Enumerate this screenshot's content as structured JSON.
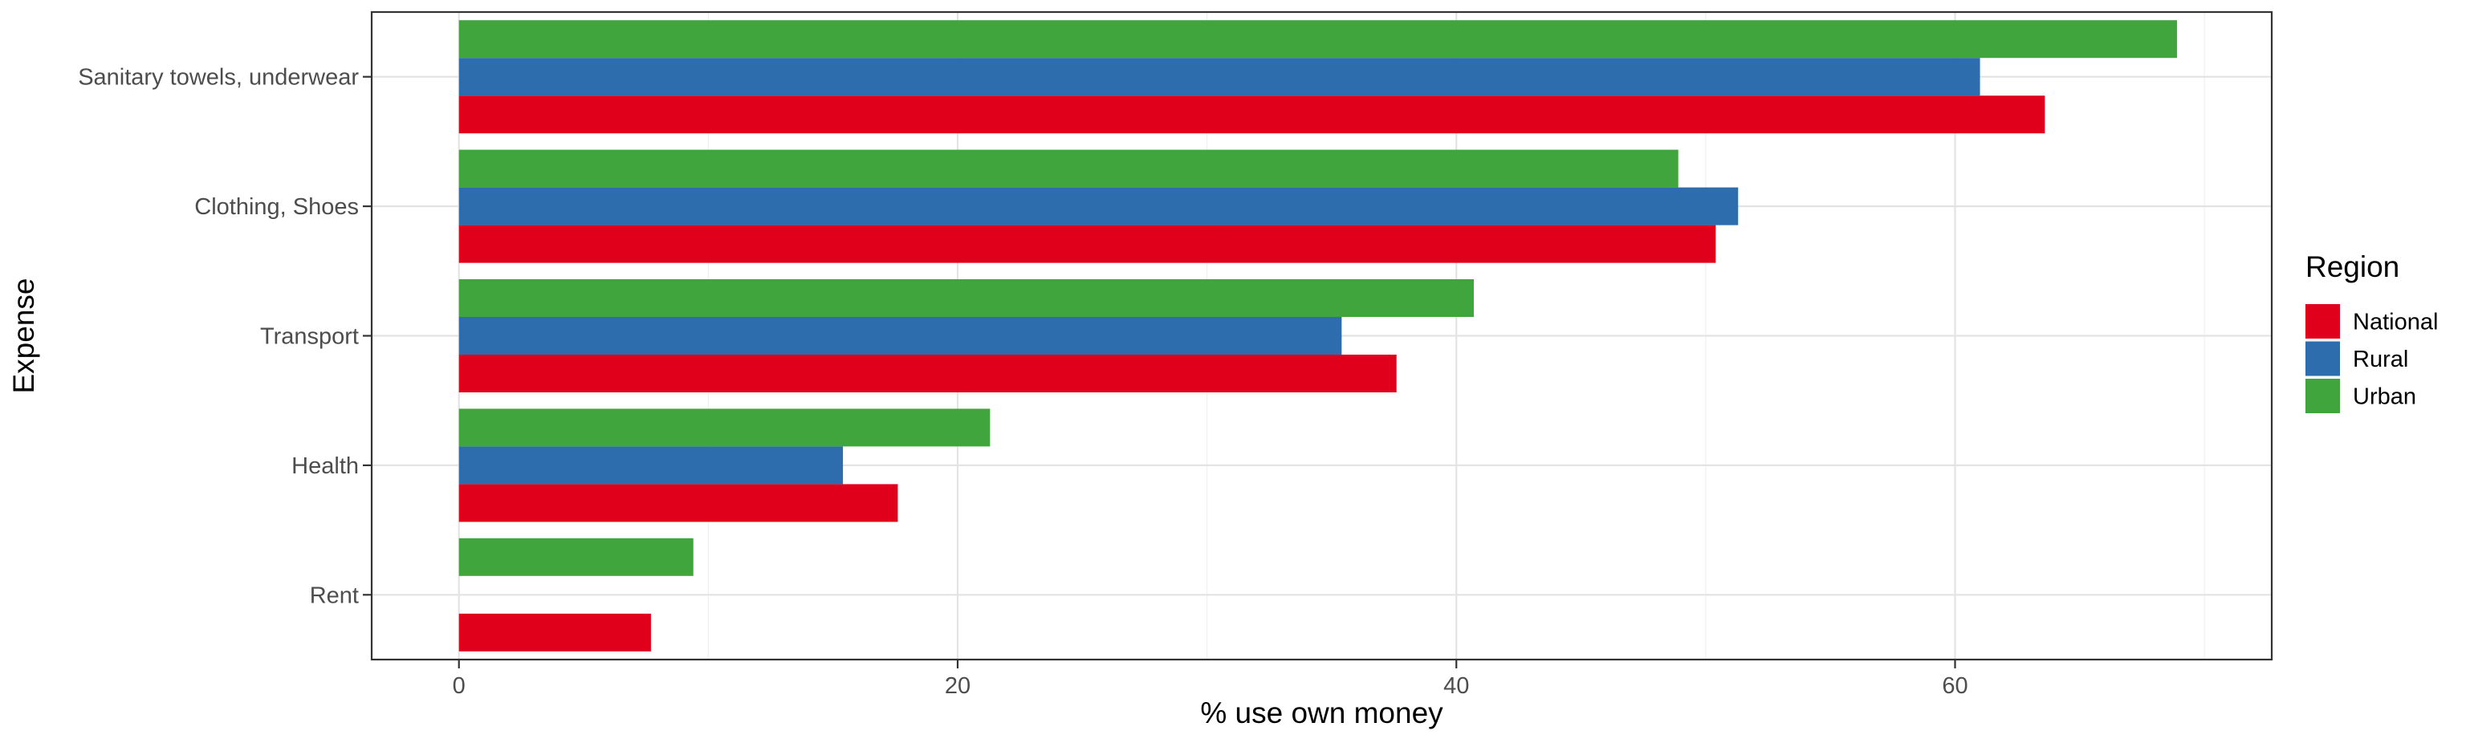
{
  "chart_data": {
    "type": "bar",
    "orientation": "horizontal",
    "title": "",
    "xlabel": "% use own money",
    "ylabel": "Expense",
    "xlim": [
      -3.5,
      72.7
    ],
    "x_ticks": [
      0,
      20,
      40,
      60
    ],
    "grid": true,
    "categories": [
      "Sanitary towels, underwear",
      "Clothing, Shoes",
      "Transport",
      "Health",
      "Rent"
    ],
    "series": [
      {
        "name": "National",
        "color": "#E0001B",
        "values": [
          63.6,
          50.4,
          37.6,
          17.6,
          7.7
        ]
      },
      {
        "name": "Rural",
        "color": "#2E6DAD",
        "values": [
          61.0,
          51.3,
          35.4,
          15.4,
          null
        ]
      },
      {
        "name": "Urban",
        "color": "#3FA53C",
        "values": [
          68.9,
          48.9,
          40.7,
          21.3,
          9.4
        ]
      }
    ],
    "legend": {
      "title": "Region",
      "placement": "right",
      "entries": [
        "National",
        "Rural",
        "Urban"
      ]
    }
  }
}
